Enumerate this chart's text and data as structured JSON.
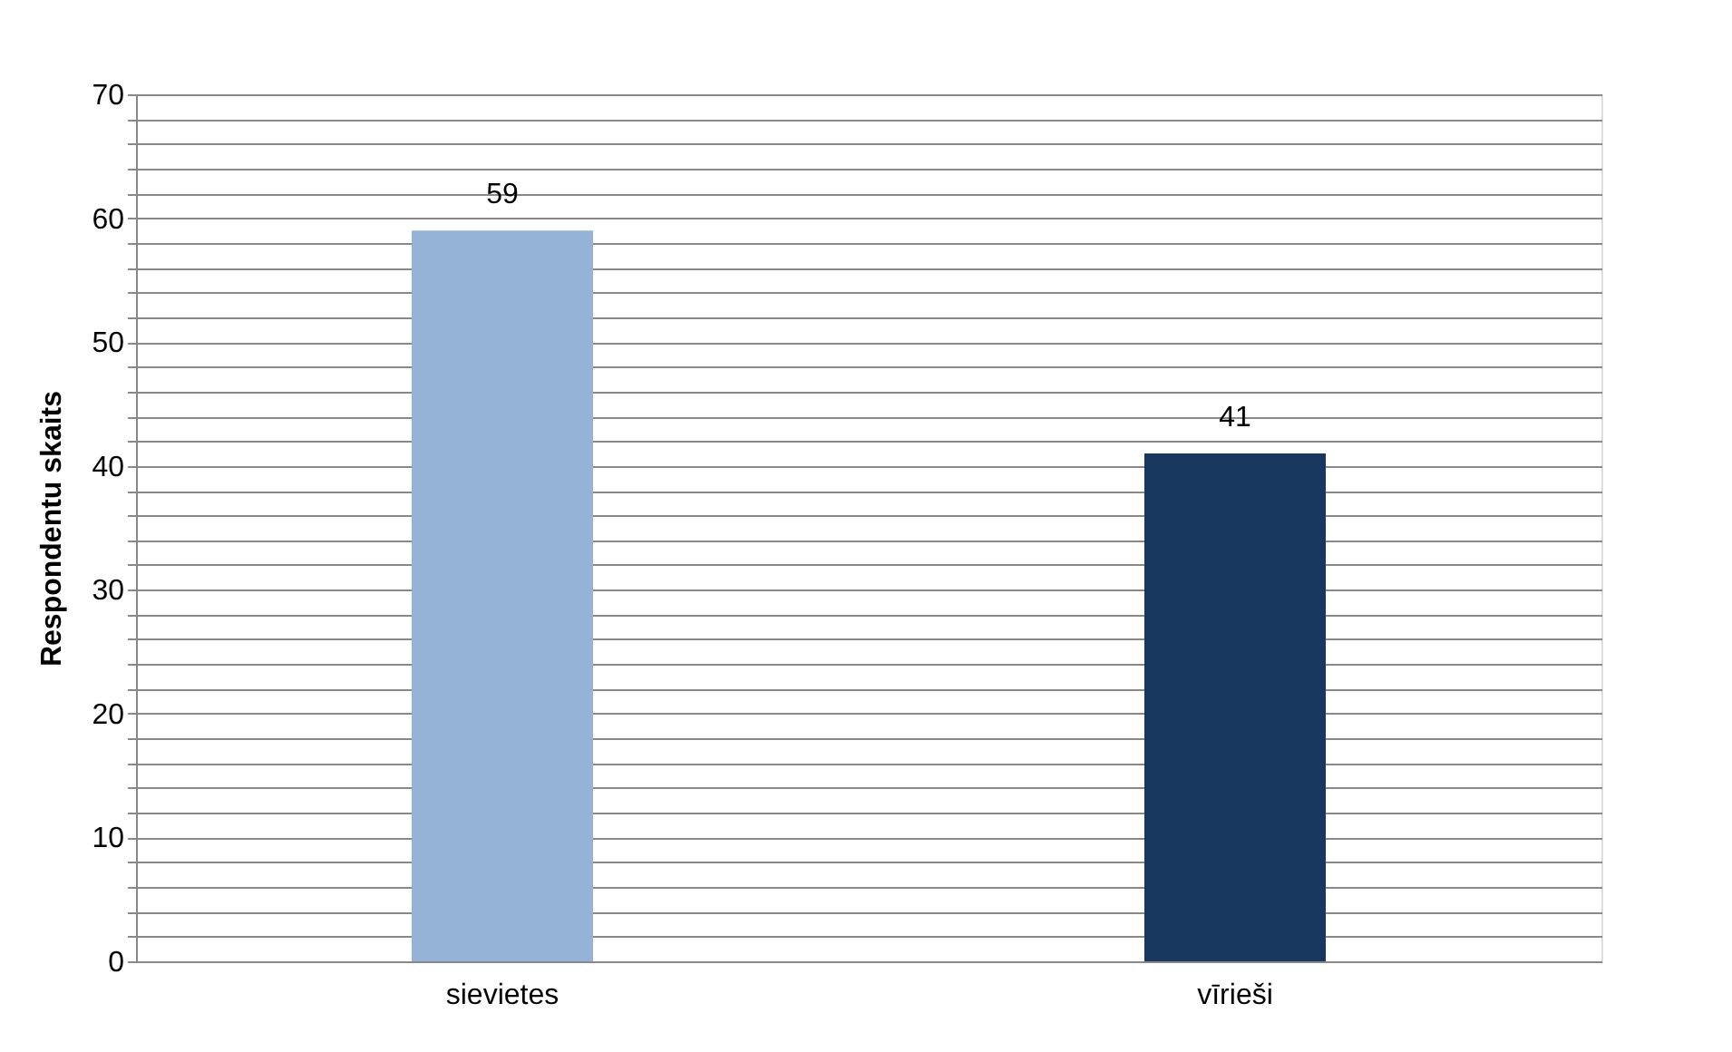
{
  "chart_data": {
    "type": "bar",
    "ylabel": "Respondentu skaits",
    "categories": [
      "sievietes",
      "vīrieši"
    ],
    "values": [
      59,
      41
    ],
    "colors": [
      "#95b3d7",
      "#17375e"
    ],
    "ylim": [
      0,
      70
    ],
    "yticks": [
      0,
      {
        "value": 2,
        "label": null
      },
      {
        "value": 4,
        "label": null
      },
      {
        "value": 6,
        "label": null
      },
      {
        "value": 8,
        "label": null
      },
      10,
      {
        "value": 12,
        "label": null
      },
      {
        "value": 14,
        "label": null
      },
      {
        "value": 16,
        "label": null
      },
      {
        "value": 18,
        "label": null
      },
      20,
      {
        "value": 22,
        "label": null
      },
      {
        "value": 24,
        "label": null
      },
      {
        "value": 26,
        "label": null
      },
      {
        "value": 28,
        "label": null
      },
      30,
      {
        "value": 32,
        "label": null
      },
      {
        "value": 34,
        "label": null
      },
      {
        "value": 36,
        "label": null
      },
      {
        "value": 38,
        "label": null
      },
      40,
      {
        "value": 42,
        "label": null
      },
      {
        "value": 44,
        "label": null
      },
      {
        "value": 46,
        "label": null
      },
      {
        "value": 48,
        "label": null
      },
      50,
      {
        "value": 52,
        "label": null
      },
      {
        "value": 54,
        "label": null
      },
      {
        "value": 56,
        "label": null
      },
      {
        "value": 58,
        "label": null
      },
      60,
      {
        "value": 62,
        "label": null
      },
      {
        "value": 64,
        "label": null
      },
      {
        "value": 66,
        "label": null
      },
      {
        "value": 68,
        "label": null
      },
      70
    ],
    "grid": "y",
    "data_labels": true
  }
}
